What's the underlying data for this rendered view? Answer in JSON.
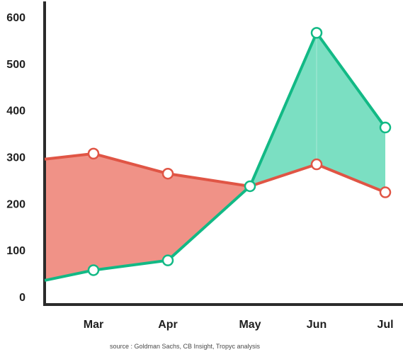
{
  "chart_data": {
    "type": "line",
    "categories": [
      "Mar",
      "Apr",
      "May",
      "Jun",
      "Jul"
    ],
    "ylim": [
      0,
      600
    ],
    "yticks": [
      "600",
      "500",
      "400",
      "300",
      "200",
      "100",
      "0"
    ],
    "xlim_left_value": {
      "red": 295,
      "green": 35
    },
    "series": [
      {
        "key": "red",
        "color": "#e05545",
        "values": [
          307,
          264,
          237,
          284,
          224
        ]
      },
      {
        "key": "green",
        "color": "#12b985",
        "values": [
          57,
          78,
          237,
          566,
          363
        ]
      }
    ],
    "fill_colors": {
      "red_above": "#f09287",
      "green_above": "#7bdfc2"
    },
    "grid": false,
    "legend": "none"
  },
  "source": "source : Goldman Sachs, CB Insight, Tropyc analysis"
}
